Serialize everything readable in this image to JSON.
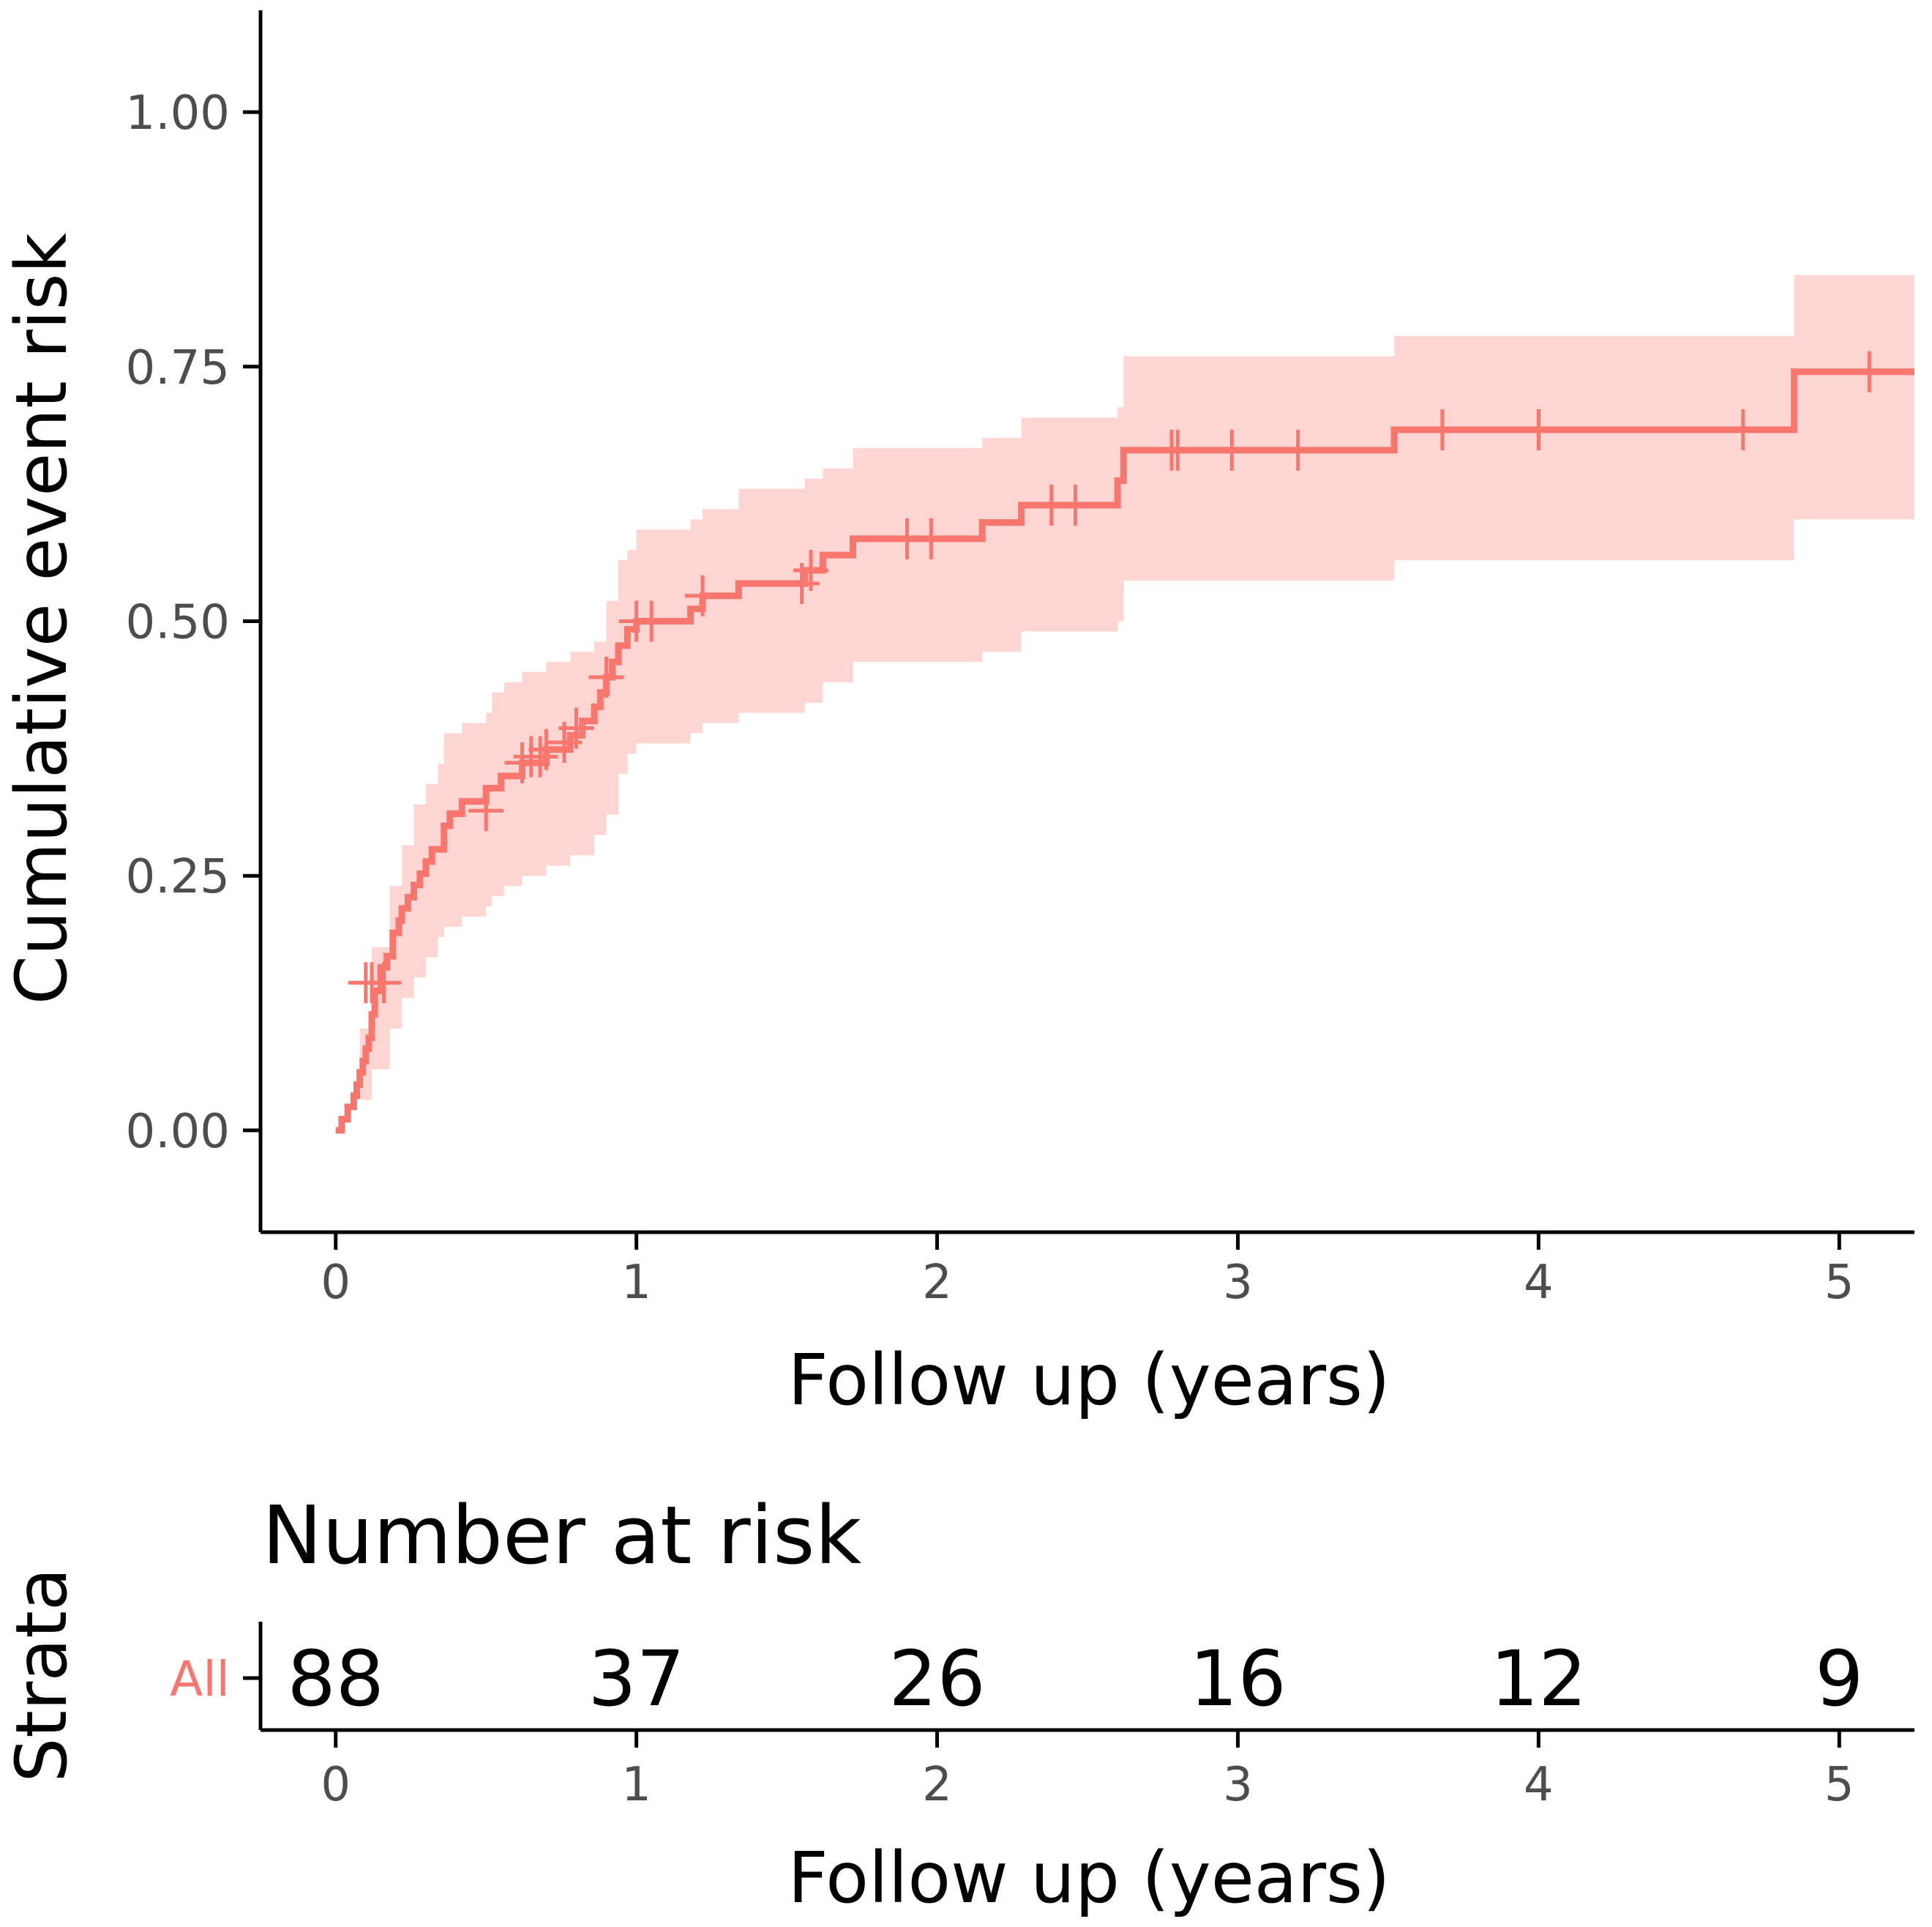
{
  "colors": {
    "series": "#f8766d",
    "band": "#f8766d",
    "axis": "#000000",
    "tick_text": "#4d4d4d"
  },
  "chart_data": {
    "type": "line",
    "subtype": "kaplan-meier cumulative incidence step curve with confidence band and censor marks",
    "ylabel": "Cumulative event risk",
    "xlabel": "Follow up (years)",
    "xlim": [
      -0.25,
      5.25
    ],
    "ylim": [
      -0.1,
      1.1
    ],
    "xticks": [
      0,
      1,
      2,
      3,
      4,
      5
    ],
    "xtick_labels": [
      "0",
      "1",
      "2",
      "3",
      "4",
      "5"
    ],
    "yticks": [
      0,
      0.25,
      0.5,
      0.75,
      1.0
    ],
    "ytick_labels": [
      "0.00",
      "0.25",
      "0.50",
      "0.75",
      "1.00"
    ],
    "grid": false,
    "series": [
      {
        "name": "All",
        "steps": [
          [
            0,
            0
          ],
          [
            0.02,
            0.011
          ],
          [
            0.04,
            0.023
          ],
          [
            0.06,
            0.034
          ],
          [
            0.07,
            0.045
          ],
          [
            0.08,
            0.057
          ],
          [
            0.09,
            0.068
          ],
          [
            0.1,
            0.08
          ],
          [
            0.11,
            0.091
          ],
          [
            0.12,
            0.114
          ],
          [
            0.13,
            0.137
          ],
          [
            0.15,
            0.16
          ],
          [
            0.17,
            0.171
          ],
          [
            0.19,
            0.194
          ],
          [
            0.21,
            0.206
          ],
          [
            0.22,
            0.218
          ],
          [
            0.24,
            0.229
          ],
          [
            0.26,
            0.241
          ],
          [
            0.28,
            0.252
          ],
          [
            0.3,
            0.264
          ],
          [
            0.32,
            0.276
          ],
          [
            0.36,
            0.299
          ],
          [
            0.38,
            0.311
          ],
          [
            0.42,
            0.323
          ],
          [
            0.5,
            0.336
          ],
          [
            0.55,
            0.348
          ],
          [
            0.62,
            0.361
          ],
          [
            0.7,
            0.374
          ],
          [
            0.78,
            0.388
          ],
          [
            0.82,
            0.402
          ],
          [
            0.86,
            0.416
          ],
          [
            0.88,
            0.43
          ],
          [
            0.9,
            0.445
          ],
          [
            0.92,
            0.46
          ],
          [
            0.94,
            0.476
          ],
          [
            0.97,
            0.492
          ],
          [
            1.0,
            0.5
          ],
          [
            1.18,
            0.512
          ],
          [
            1.22,
            0.525
          ],
          [
            1.34,
            0.537
          ],
          [
            1.56,
            0.55
          ],
          [
            1.62,
            0.565
          ],
          [
            1.72,
            0.581
          ],
          [
            2.15,
            0.597
          ],
          [
            2.28,
            0.614
          ],
          [
            2.6,
            0.638
          ],
          [
            2.62,
            0.668
          ],
          [
            3.52,
            0.688
          ],
          [
            4.85,
            0.745
          ]
        ],
        "end_x": 5.25,
        "band": [
          [
            0,
            0,
            0
          ],
          [
            0.08,
            0.03,
            0.1
          ],
          [
            0.12,
            0.06,
            0.18
          ],
          [
            0.18,
            0.1,
            0.24
          ],
          [
            0.22,
            0.13,
            0.28
          ],
          [
            0.26,
            0.15,
            0.32
          ],
          [
            0.3,
            0.17,
            0.34
          ],
          [
            0.34,
            0.19,
            0.36
          ],
          [
            0.36,
            0.2,
            0.39
          ],
          [
            0.42,
            0.21,
            0.4
          ],
          [
            0.5,
            0.22,
            0.41
          ],
          [
            0.52,
            0.23,
            0.43
          ],
          [
            0.56,
            0.24,
            0.44
          ],
          [
            0.62,
            0.25,
            0.45
          ],
          [
            0.7,
            0.26,
            0.46
          ],
          [
            0.78,
            0.27,
            0.47
          ],
          [
            0.86,
            0.29,
            0.48
          ],
          [
            0.9,
            0.31,
            0.52
          ],
          [
            0.94,
            0.35,
            0.56
          ],
          [
            0.97,
            0.37,
            0.57
          ],
          [
            1.0,
            0.38,
            0.59
          ],
          [
            1.18,
            0.39,
            0.6
          ],
          [
            1.22,
            0.4,
            0.61
          ],
          [
            1.34,
            0.41,
            0.63
          ],
          [
            1.56,
            0.42,
            0.64
          ],
          [
            1.62,
            0.44,
            0.65
          ],
          [
            1.72,
            0.46,
            0.67
          ],
          [
            2.15,
            0.47,
            0.68
          ],
          [
            2.28,
            0.49,
            0.7
          ],
          [
            2.6,
            0.5,
            0.71
          ],
          [
            2.62,
            0.54,
            0.76
          ],
          [
            3.52,
            0.56,
            0.78
          ],
          [
            4.85,
            0.6,
            0.84
          ]
        ],
        "censored": [
          [
            0.1,
            0.145
          ],
          [
            0.12,
            0.145
          ],
          [
            0.16,
            0.145
          ],
          [
            0.5,
            0.314
          ],
          [
            0.62,
            0.361
          ],
          [
            0.65,
            0.367
          ],
          [
            0.68,
            0.367
          ],
          [
            0.7,
            0.374
          ],
          [
            0.76,
            0.381
          ],
          [
            0.8,
            0.395
          ],
          [
            0.9,
            0.445
          ],
          [
            1.0,
            0.5
          ],
          [
            1.05,
            0.5
          ],
          [
            1.22,
            0.525
          ],
          [
            1.55,
            0.537
          ],
          [
            1.58,
            0.55
          ],
          [
            1.9,
            0.581
          ],
          [
            1.98,
            0.581
          ],
          [
            2.38,
            0.614
          ],
          [
            2.46,
            0.614
          ],
          [
            2.78,
            0.668
          ],
          [
            2.8,
            0.668
          ],
          [
            2.98,
            0.668
          ],
          [
            3.2,
            0.668
          ],
          [
            3.68,
            0.688
          ],
          [
            4.0,
            0.688
          ],
          [
            4.68,
            0.688
          ],
          [
            5.1,
            0.745
          ]
        ]
      }
    ],
    "risk_table": {
      "title": "Number at risk",
      "ylabel": "Strata",
      "xlabel": "Follow up (years)",
      "strata": [
        "All"
      ],
      "times": [
        0,
        1,
        2,
        3,
        4,
        5
      ],
      "counts": [
        [
          "88",
          "37",
          "26",
          "16",
          "12",
          "9"
        ]
      ],
      "xtick_labels": [
        "0",
        "1",
        "2",
        "3",
        "4",
        "5"
      ]
    }
  }
}
